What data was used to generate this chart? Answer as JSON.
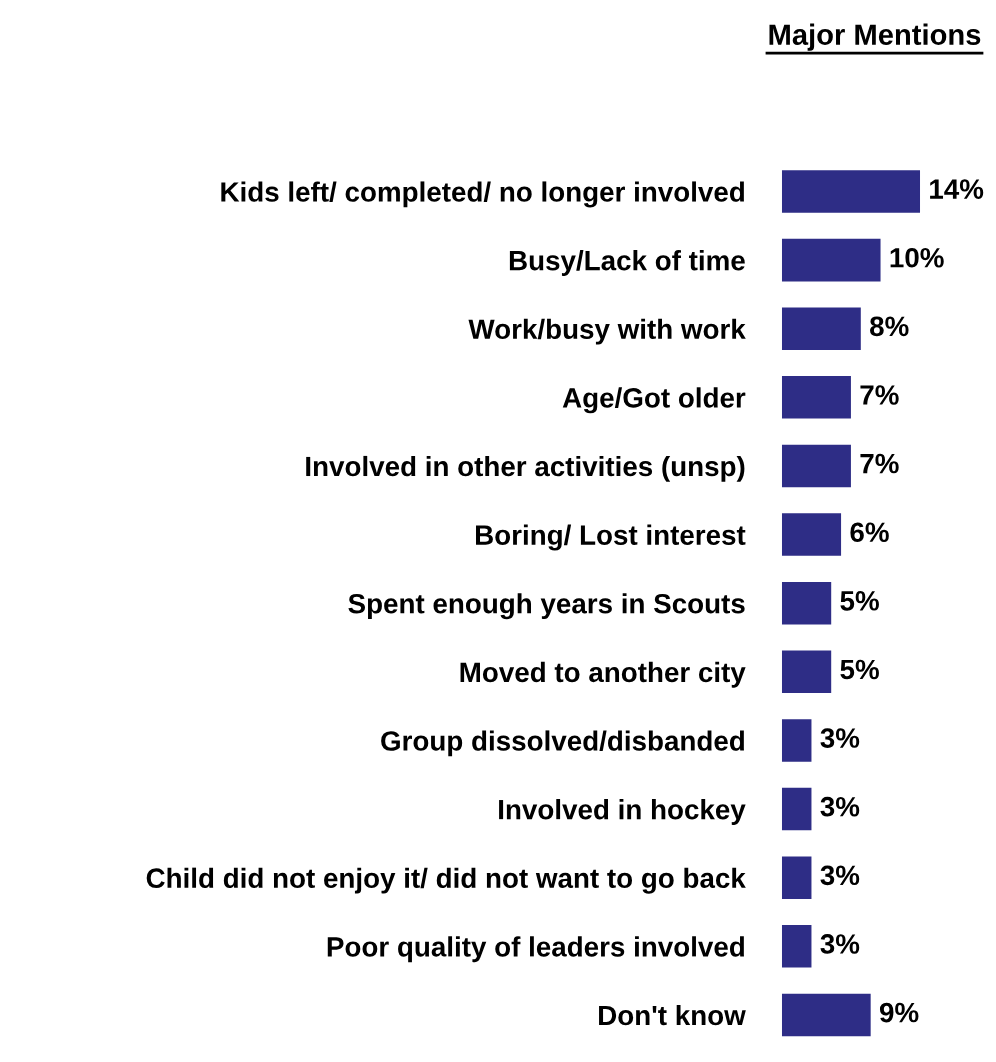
{
  "chart_data": {
    "type": "bar",
    "orientation": "horizontal",
    "title": "Major Mentions",
    "categories": [
      "Kids left/ completed/ no longer involved",
      "Busy/Lack of time",
      "Work/busy with work",
      "Age/Got older",
      "Involved in other activities (unsp)",
      "Boring/ Lost interest",
      "Spent enough years in Scouts",
      "Moved to another city",
      "Group dissolved/disbanded",
      "Involved in hockey",
      "Child did not enjoy it/ did not want to go back",
      "Poor quality of leaders involved",
      "Don't know"
    ],
    "values": [
      14,
      10,
      8,
      7,
      7,
      6,
      5,
      5,
      3,
      3,
      3,
      3,
      9
    ],
    "value_labels": [
      "14%",
      "10%",
      "8%",
      "7%",
      "7%",
      "6%",
      "5%",
      "5%",
      "3%",
      "3%",
      "3%",
      "3%",
      "9%"
    ],
    "color": "#2e2d86",
    "grid": false,
    "legend": false
  }
}
